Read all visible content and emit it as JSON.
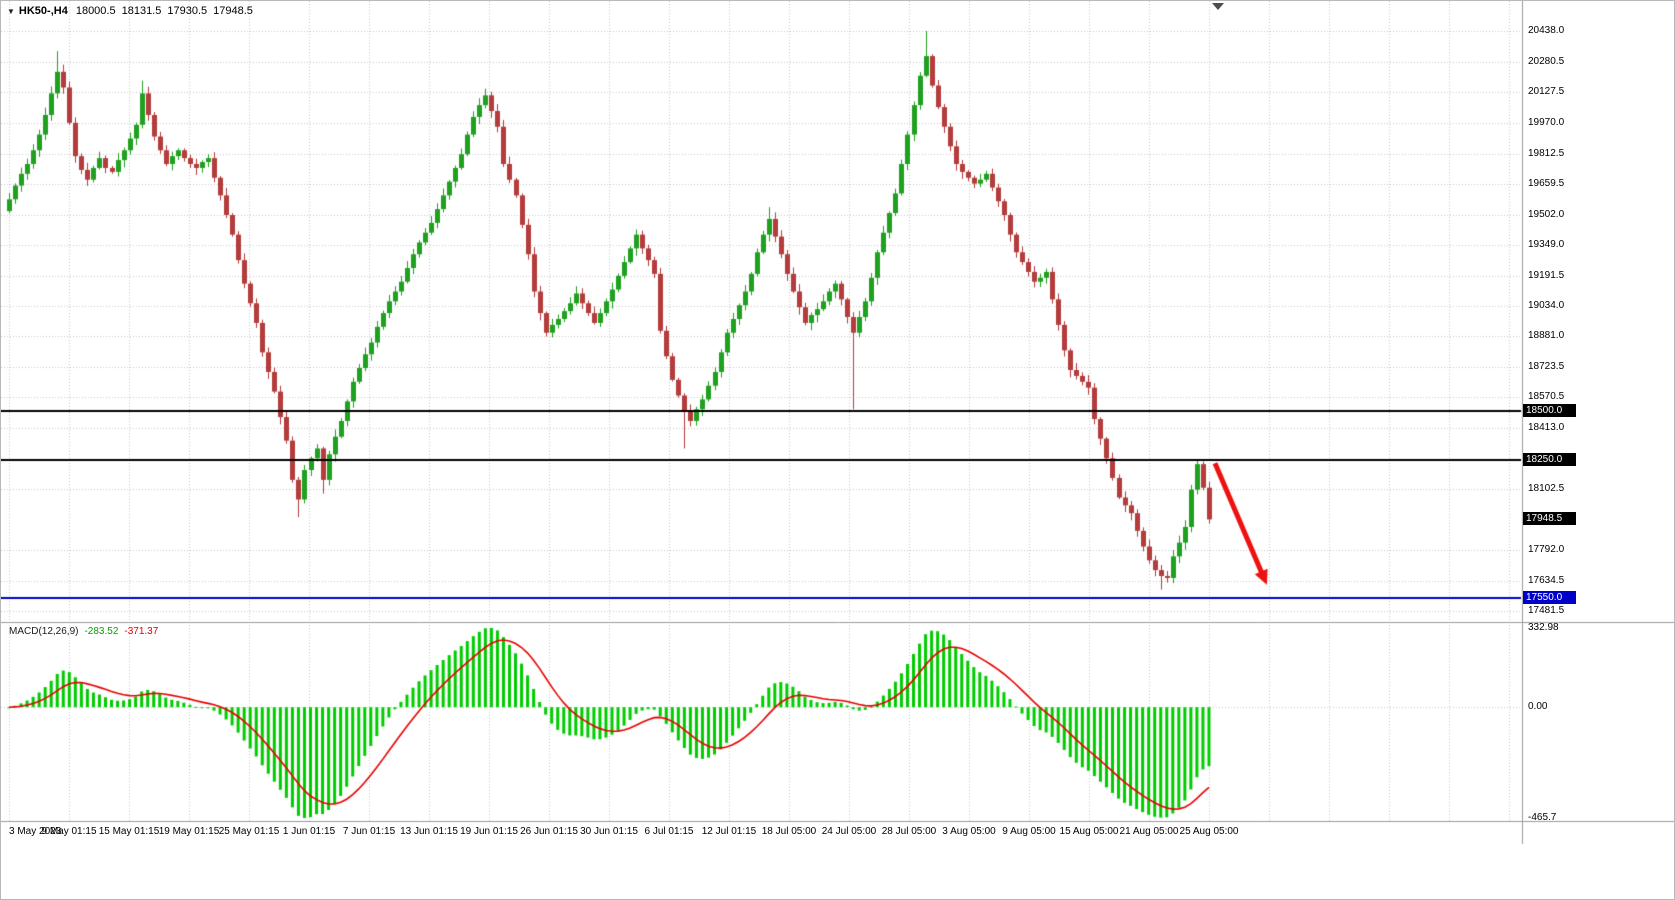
{
  "symbol_bar": {
    "dropdown_icon": "▼",
    "symbol": "HK50-,H4",
    "open": "18000.5",
    "high": "18131.5",
    "low": "17930.5",
    "close": "17948.5"
  },
  "chart_data": {
    "type": "candlestick",
    "title": "HK50-,H4",
    "timeframe": "H4",
    "legend_position": "top-left",
    "grid": "dotted",
    "x_labels": [
      "3 May 2023",
      "9 May 01:15",
      "15 May 01:15",
      "19 May 01:15",
      "25 May 01:15",
      "1 Jun 01:15",
      "7 Jun 01:15",
      "13 Jun 01:15",
      "19 Jun 01:15",
      "26 Jun 01:15",
      "30 Jun 01:15",
      "6 Jul 01:15",
      "12 Jul 01:15",
      "18 Jul 05:00",
      "24 Jul 05:00",
      "28 Jul 05:00",
      "3 Aug 05:00",
      "9 Aug 05:00",
      "15 Aug 05:00",
      "21 Aug 05:00",
      "25 Aug 05:00"
    ],
    "price_axis": {
      "min": 17481.5,
      "max": 20438.0,
      "ticks": [
        "20438.0",
        "20280.5",
        "20127.5",
        "19970.0",
        "19812.5",
        "19659.5",
        "19502.0",
        "19349.0",
        "19191.5",
        "19034.0",
        "18881.0",
        "18723.5",
        "18570.5",
        "18413.0",
        "18102.5",
        "17792.0",
        "17634.5",
        "17481.5"
      ]
    },
    "candles_close": [
      19580,
      19650,
      19710,
      19760,
      19830,
      19910,
      20010,
      20120,
      20230,
      20150,
      19970,
      19800,
      19730,
      19680,
      19740,
      19790,
      19740,
      19720,
      19780,
      19830,
      19890,
      19960,
      20120,
      20010,
      19900,
      19830,
      19760,
      19800,
      19830,
      19790,
      19760,
      19740,
      19770,
      19790,
      19690,
      19600,
      19500,
      19400,
      19270,
      19150,
      19050,
      18950,
      18800,
      18700,
      18600,
      18470,
      18350,
      18150,
      18050,
      18200,
      18260,
      18310,
      18150,
      18280,
      18370,
      18450,
      18550,
      18650,
      18720,
      18790,
      18850,
      18930,
      19000,
      19060,
      19110,
      19160,
      19230,
      19300,
      19360,
      19410,
      19460,
      19530,
      19600,
      19670,
      19740,
      19810,
      19910,
      20000,
      20060,
      20110,
      20030,
      19950,
      19760,
      19680,
      19600,
      19450,
      19300,
      19110,
      19000,
      18900,
      18940,
      18970,
      19010,
      19050,
      19100,
      19050,
      19000,
      18950,
      19000,
      19060,
      19120,
      19190,
      19260,
      19330,
      19400,
      19330,
      19270,
      19200,
      18910,
      18780,
      18660,
      18580,
      18500,
      18450,
      18510,
      18560,
      18630,
      18700,
      18800,
      18900,
      18970,
      19040,
      19110,
      19200,
      19310,
      19400,
      19480,
      19390,
      19300,
      19200,
      19110,
      19030,
      18950,
      18990,
      19020,
      19060,
      19110,
      19150,
      19070,
      18980,
      18900,
      18980,
      19060,
      19180,
      19310,
      19410,
      19510,
      19610,
      19760,
      19910,
      20060,
      20210,
      20310,
      20160,
      20050,
      19950,
      19850,
      19760,
      19720,
      19690,
      19660,
      19680,
      19710,
      19640,
      19570,
      19500,
      19400,
      19310,
      19260,
      19210,
      19160,
      19180,
      19210,
      19070,
      18940,
      18810,
      18710,
      18680,
      18650,
      18620,
      18460,
      18360,
      18260,
      18160,
      18060,
      18020,
      17980,
      17890,
      17810,
      17740,
      17690,
      17660,
      17650,
      17760,
      17830,
      17910,
      18100,
      18230,
      18110,
      17948.5
    ],
    "wick_overrides": {
      "8": {
        "high": 20335
      },
      "22": {
        "high": 20185
      },
      "48": {
        "low": 17960
      },
      "52": {
        "low": 18080
      },
      "112": {
        "low": 18310
      },
      "126": {
        "high": 19540
      },
      "140": {
        "low": 18510
      },
      "152": {
        "high": 20438
      },
      "191": {
        "low": 17590
      }
    },
    "hlines": [
      {
        "value": 18500,
        "color": "#000000",
        "width": 2
      },
      {
        "value": 18250,
        "color": "#000000",
        "width": 2
      },
      {
        "value": 17550,
        "color": "#0000c8",
        "width": 2
      }
    ],
    "special_price_labels": [
      {
        "text": "18500.0",
        "value": 18500,
        "bg": "#000000"
      },
      {
        "text": "18250.0",
        "value": 18250,
        "bg": "#000000"
      },
      {
        "text": "17948.5",
        "value": 17948.5,
        "bg": "#000000"
      },
      {
        "text": "17550.0",
        "value": 17550,
        "bg": "#0000c8"
      }
    ],
    "arrow": {
      "from_index": 200,
      "from_price": 18235,
      "to_index": 208.6,
      "to_price": 17615,
      "color": "#ee1111",
      "width": 5
    },
    "macd": {
      "label": "MACD(12,26,9)",
      "macd_value": "-283.52",
      "signal_value": "-371.37",
      "params": {
        "fast": 12,
        "slow": 26,
        "signal": 9
      },
      "ymax": 332.98,
      "ymin": -465.7,
      "axis_ticks": [
        {
          "text": "332.98",
          "value": 332.98
        },
        {
          "text": "0.00",
          "value": 0
        },
        {
          "text": "-465.7",
          "value": -465.7
        }
      ]
    },
    "colors": {
      "bull": "#1fa11f",
      "bear": "#b43c3c",
      "histogram": "#00cc00",
      "signal": "#e80000",
      "grid": "#c9c9c9",
      "separator": "#9a9a9a",
      "arrow": "#ee1111",
      "badge_text": "#ffffff",
      "background": "#ffffff"
    }
  }
}
